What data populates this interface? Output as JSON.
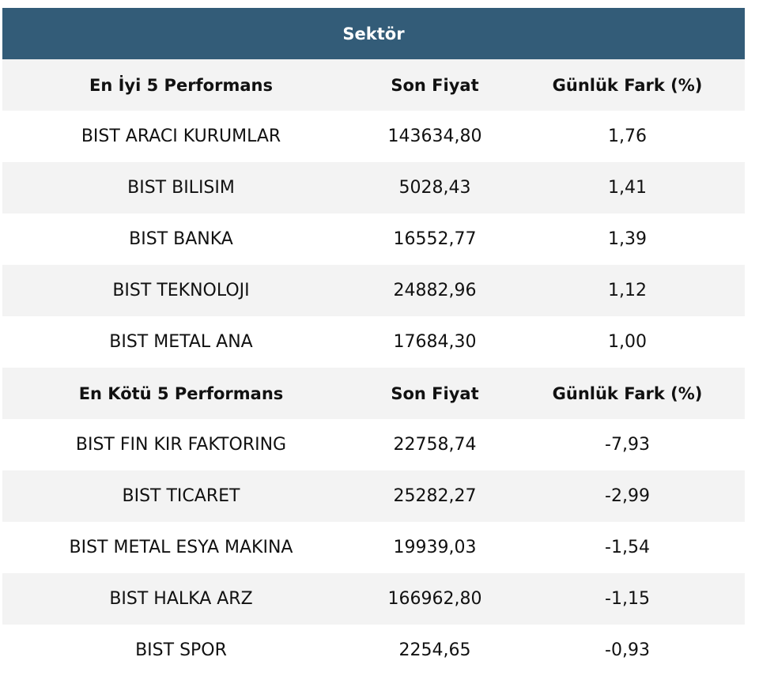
{
  "title": "Sektör",
  "sections": [
    {
      "header": [
        "En İyi 5 Performans",
        "Son Fiyat",
        "Günlük Fark (%)"
      ],
      "rows": [
        [
          "BIST ARACI KURUMLAR",
          "143634,80",
          "1,76"
        ],
        [
          "BIST BILISIM",
          "5028,43",
          "1,41"
        ],
        [
          "BIST BANKA",
          "16552,77",
          "1,39"
        ],
        [
          "BIST TEKNOLOJI",
          "24882,96",
          "1,12"
        ],
        [
          "BIST METAL ANA",
          "17684,30",
          "1,00"
        ]
      ]
    },
    {
      "header": [
        "En Kötü 5 Performans",
        "Son Fiyat",
        "Günlük Fark (%)"
      ],
      "rows": [
        [
          "BIST FIN KIR FAKTORING",
          "22758,74",
          "-7,93"
        ],
        [
          "BIST TICARET",
          "25282,27",
          "-2,99"
        ],
        [
          "BIST METAL ESYA MAKINA",
          "19939,03",
          "-1,54"
        ],
        [
          "BIST HALKA ARZ",
          "166962,80",
          "-1,15"
        ],
        [
          "BIST SPOR",
          "2254,65",
          "-0,93"
        ]
      ]
    }
  ]
}
